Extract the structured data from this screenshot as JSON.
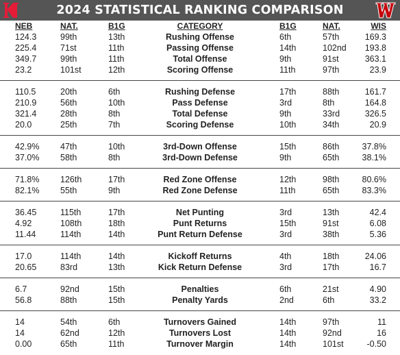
{
  "title": "2024 STATISTICAL RANKING COMPARISON",
  "colors": {
    "header_bg": "#555555",
    "nebraska_red": "#e41c38",
    "wisconsin_red": "#c5050c"
  },
  "logos": {
    "left": "nebraska-n-logo",
    "right": "wisconsin-w-logo"
  },
  "columns": {
    "neb": "NEB",
    "neb_nat": "NAT.",
    "neb_b1g": "B1G",
    "category": "CATEGORY",
    "wis_b1g": "B1G",
    "wis_nat": "NAT.",
    "wis": "WIS"
  },
  "groups": [
    {
      "rows": [
        {
          "neb": "124.3",
          "neb_nat": "99th",
          "neb_b1g": "13th",
          "category": "Rushing Offense",
          "wis_b1g": "6th",
          "wis_nat": "57th",
          "wis": "169.3"
        },
        {
          "neb": "225.4",
          "neb_nat": "71st",
          "neb_b1g": "11th",
          "category": "Passing Offense",
          "wis_b1g": "14th",
          "wis_nat": "102nd",
          "wis": "193.8"
        },
        {
          "neb": "349.7",
          "neb_nat": "99th",
          "neb_b1g": "11th",
          "category": "Total Offense",
          "wis_b1g": "9th",
          "wis_nat": "91st",
          "wis": "363.1"
        },
        {
          "neb": "23.2",
          "neb_nat": "101st",
          "neb_b1g": "12th",
          "category": "Scoring Offense",
          "wis_b1g": "11th",
          "wis_nat": "97th",
          "wis": "23.9"
        }
      ]
    },
    {
      "rows": [
        {
          "neb": "110.5",
          "neb_nat": "20th",
          "neb_b1g": "6th",
          "category": "Rushing Defense",
          "wis_b1g": "17th",
          "wis_nat": "88th",
          "wis": "161.7"
        },
        {
          "neb": "210.9",
          "neb_nat": "56th",
          "neb_b1g": "10th",
          "category": "Pass Defense",
          "wis_b1g": "3rd",
          "wis_nat": "8th",
          "wis": "164.8"
        },
        {
          "neb": "321.4",
          "neb_nat": "28th",
          "neb_b1g": "8th",
          "category": "Total Defense",
          "wis_b1g": "9th",
          "wis_nat": "33rd",
          "wis": "326.5"
        },
        {
          "neb": "20.0",
          "neb_nat": "25th",
          "neb_b1g": "7th",
          "category": "Scoring Defense",
          "wis_b1g": "10th",
          "wis_nat": "34th",
          "wis": "20.9"
        }
      ]
    },
    {
      "rows": [
        {
          "neb": "42.9%",
          "neb_nat": "47th",
          "neb_b1g": "10th",
          "category": "3rd-Down Offense",
          "wis_b1g": "15th",
          "wis_nat": "86th",
          "wis": "37.8%"
        },
        {
          "neb": "37.0%",
          "neb_nat": "58th",
          "neb_b1g": "8th",
          "category": "3rd-Down Defense",
          "wis_b1g": "9th",
          "wis_nat": "65th",
          "wis": "38.1%"
        }
      ]
    },
    {
      "rows": [
        {
          "neb": "71.8%",
          "neb_nat": "126th",
          "neb_b1g": "17th",
          "category": "Red Zone Offense",
          "wis_b1g": "12th",
          "wis_nat": "98th",
          "wis": "80.6%"
        },
        {
          "neb": "82.1%",
          "neb_nat": "55th",
          "neb_b1g": "9th",
          "category": "Red Zone Defense",
          "wis_b1g": "11th",
          "wis_nat": "65th",
          "wis": "83.3%"
        }
      ]
    },
    {
      "rows": [
        {
          "neb": "36.45",
          "neb_nat": "115th",
          "neb_b1g": "17th",
          "category": "Net Punting",
          "wis_b1g": "3rd",
          "wis_nat": "13th",
          "wis": "42.4"
        },
        {
          "neb": "4.92",
          "neb_nat": "108th",
          "neb_b1g": "18th",
          "category": "Punt Returns",
          "wis_b1g": "15th",
          "wis_nat": "91st",
          "wis": "6.08"
        },
        {
          "neb": "11.44",
          "neb_nat": "114th",
          "neb_b1g": "14th",
          "category": "Punt Return Defense",
          "wis_b1g": "3rd",
          "wis_nat": "38th",
          "wis": "5.36"
        }
      ]
    },
    {
      "rows": [
        {
          "neb": "17.0",
          "neb_nat": "114th",
          "neb_b1g": "14th",
          "category": "Kickoff Returns",
          "wis_b1g": "4th",
          "wis_nat": "18th",
          "wis": "24.06"
        },
        {
          "neb": "20.65",
          "neb_nat": "83rd",
          "neb_b1g": "13th",
          "category": "Kick Return Defense",
          "wis_b1g": "3rd",
          "wis_nat": "17th",
          "wis": "16.7"
        }
      ]
    },
    {
      "rows": [
        {
          "neb": "6.7",
          "neb_nat": "92nd",
          "neb_b1g": "15th",
          "category": "Penalties",
          "wis_b1g": "6th",
          "wis_nat": "21st",
          "wis": "4.90"
        },
        {
          "neb": "56.8",
          "neb_nat": "88th",
          "neb_b1g": "15th",
          "category": "Penalty Yards",
          "wis_b1g": "2nd",
          "wis_nat": "6th",
          "wis": "33.2"
        }
      ]
    },
    {
      "rows": [
        {
          "neb": "14",
          "neb_nat": "54th",
          "neb_b1g": "6th",
          "category": "Turnovers Gained",
          "wis_b1g": "14th",
          "wis_nat": "97th",
          "wis": "11"
        },
        {
          "neb": "14",
          "neb_nat": "62nd",
          "neb_b1g": "12th",
          "category": "Turnovers Lost",
          "wis_b1g": "14th",
          "wis_nat": "92nd",
          "wis": "16"
        },
        {
          "neb": "0.00",
          "neb_nat": "65th",
          "neb_b1g": "11th",
          "category": "Turnover Margin",
          "wis_b1g": "14th",
          "wis_nat": "101st",
          "wis": "-0.50"
        }
      ]
    }
  ]
}
